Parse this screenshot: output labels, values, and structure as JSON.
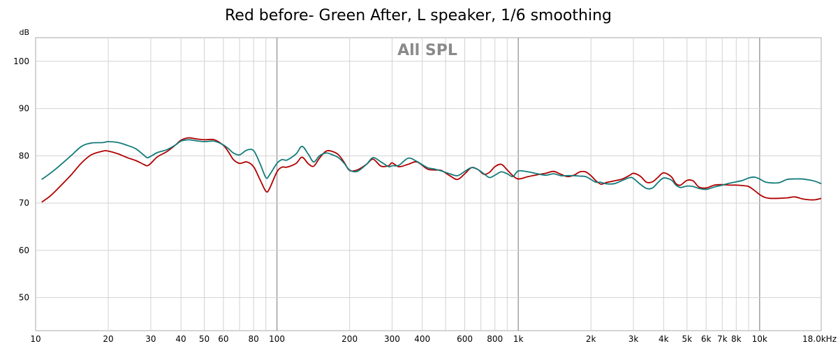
{
  "chart_data": {
    "type": "line",
    "title": "Red before- Green After, L speaker, 1/6 smoothing",
    "watermark": "All SPL",
    "ylabel": "dB",
    "xlabel": "",
    "x_scale": "log",
    "xlim": [
      10,
      18000
    ],
    "ylim": [
      43,
      105
    ],
    "grid": true,
    "y_ticks": [
      {
        "value": 100,
        "label": "100"
      },
      {
        "value": 90,
        "label": "90"
      },
      {
        "value": 80,
        "label": "80"
      },
      {
        "value": 70,
        "label": "70"
      },
      {
        "value": 60,
        "label": "60"
      },
      {
        "value": 50,
        "label": "50"
      }
    ],
    "x_ticks": [
      {
        "value": 10,
        "label": "10"
      },
      {
        "value": 20,
        "label": "20"
      },
      {
        "value": 30,
        "label": "30"
      },
      {
        "value": 40,
        "label": "40"
      },
      {
        "value": 50,
        "label": "50"
      },
      {
        "value": 60,
        "label": "60"
      },
      {
        "value": 80,
        "label": "80"
      },
      {
        "value": 100,
        "label": "100"
      },
      {
        "value": 200,
        "label": "200"
      },
      {
        "value": 300,
        "label": "300"
      },
      {
        "value": 400,
        "label": "400"
      },
      {
        "value": 600,
        "label": "600"
      },
      {
        "value": 800,
        "label": "800"
      },
      {
        "value": 1000,
        "label": "1k"
      },
      {
        "value": 2000,
        "label": "2k"
      },
      {
        "value": 3000,
        "label": "3k"
      },
      {
        "value": 4000,
        "label": "4k"
      },
      {
        "value": 5000,
        "label": "5k"
      },
      {
        "value": 6000,
        "label": "6k"
      },
      {
        "value": 7000,
        "label": "7k"
      },
      {
        "value": 8000,
        "label": "8k"
      },
      {
        "value": 10000,
        "label": "10k"
      },
      {
        "value": 18000,
        "label": "18.0kHz"
      }
    ],
    "series": [
      {
        "color": "#b00000",
        "points": [
          [
            10.6,
            70.2
          ],
          [
            11.5,
            71.5
          ],
          [
            12.5,
            73.3
          ],
          [
            14,
            75.9
          ],
          [
            15.5,
            78.5
          ],
          [
            17,
            80.2
          ],
          [
            19,
            81
          ],
          [
            20,
            81
          ],
          [
            22,
            80.4
          ],
          [
            24,
            79.6
          ],
          [
            26,
            79
          ],
          [
            28,
            78.2
          ],
          [
            29,
            77.9
          ],
          [
            30,
            78.4
          ],
          [
            32,
            79.8
          ],
          [
            35,
            80.9
          ],
          [
            38,
            82.3
          ],
          [
            40,
            83.3
          ],
          [
            43,
            83.8
          ],
          [
            46,
            83.6
          ],
          [
            50,
            83.4
          ],
          [
            55,
            83.4
          ],
          [
            60,
            82.2
          ],
          [
            63,
            80.8
          ],
          [
            66,
            79.2
          ],
          [
            70,
            78.4
          ],
          [
            75,
            78.7
          ],
          [
            80,
            77.7
          ],
          [
            85,
            75
          ],
          [
            90,
            72.5
          ],
          [
            93,
            73
          ],
          [
            100,
            76.6
          ],
          [
            105,
            77.6
          ],
          [
            110,
            77.6
          ],
          [
            120,
            78.4
          ],
          [
            127,
            79.7
          ],
          [
            135,
            78.3
          ],
          [
            142,
            77.8
          ],
          [
            150,
            79.5
          ],
          [
            160,
            81
          ],
          [
            170,
            80.9
          ],
          [
            180,
            80.2
          ],
          [
            190,
            78.6
          ],
          [
            200,
            76.9
          ],
          [
            215,
            77
          ],
          [
            235,
            78.2
          ],
          [
            250,
            79.3
          ],
          [
            270,
            77.8
          ],
          [
            290,
            77.9
          ],
          [
            300,
            78.5
          ],
          [
            320,
            77.7
          ],
          [
            350,
            78.2
          ],
          [
            380,
            78.7
          ],
          [
            420,
            77.2
          ],
          [
            450,
            77
          ],
          [
            480,
            76.9
          ],
          [
            520,
            75.8
          ],
          [
            560,
            75
          ],
          [
            600,
            76.2
          ],
          [
            640,
            77.5
          ],
          [
            680,
            77.1
          ],
          [
            720,
            76.1
          ],
          [
            760,
            76.5
          ],
          [
            800,
            77.7
          ],
          [
            850,
            78.2
          ],
          [
            900,
            77
          ],
          [
            950,
            75.8
          ],
          [
            1000,
            75.1
          ],
          [
            1100,
            75.6
          ],
          [
            1200,
            76
          ],
          [
            1300,
            76.3
          ],
          [
            1400,
            76.7
          ],
          [
            1500,
            76.1
          ],
          [
            1600,
            75.6
          ],
          [
            1700,
            75.9
          ],
          [
            1800,
            76.6
          ],
          [
            1900,
            76.6
          ],
          [
            2000,
            75.8
          ],
          [
            2100,
            74.7
          ],
          [
            2200,
            74
          ],
          [
            2300,
            74.3
          ],
          [
            2500,
            74.7
          ],
          [
            2700,
            75.1
          ],
          [
            2900,
            75.9
          ],
          [
            3000,
            76.3
          ],
          [
            3200,
            75.7
          ],
          [
            3400,
            74.4
          ],
          [
            3600,
            74.5
          ],
          [
            3800,
            75.5
          ],
          [
            4000,
            76.4
          ],
          [
            4300,
            75.6
          ],
          [
            4500,
            74.1
          ],
          [
            4700,
            73.8
          ],
          [
            5000,
            74.8
          ],
          [
            5300,
            74.7
          ],
          [
            5600,
            73.4
          ],
          [
            6000,
            73.2
          ],
          [
            6500,
            73.8
          ],
          [
            7000,
            73.9
          ],
          [
            7500,
            73.8
          ],
          [
            8000,
            73.8
          ],
          [
            8500,
            73.7
          ],
          [
            9000,
            73.5
          ],
          [
            9500,
            72.7
          ],
          [
            10000,
            71.8
          ],
          [
            10500,
            71.2
          ],
          [
            11000,
            71
          ],
          [
            12000,
            71
          ],
          [
            13000,
            71.1
          ],
          [
            14000,
            71.3
          ],
          [
            15000,
            70.9
          ],
          [
            16000,
            70.7
          ],
          [
            17000,
            70.7
          ],
          [
            18000,
            71
          ]
        ]
      },
      {
        "color": "#137b7b",
        "points": [
          [
            10.6,
            75
          ],
          [
            11.5,
            76.3
          ],
          [
            12.5,
            77.8
          ],
          [
            14,
            80
          ],
          [
            15.5,
            82
          ],
          [
            17,
            82.7
          ],
          [
            19,
            82.8
          ],
          [
            20,
            83
          ],
          [
            22,
            82.8
          ],
          [
            24,
            82.2
          ],
          [
            26,
            81.5
          ],
          [
            28,
            80.2
          ],
          [
            29,
            79.6
          ],
          [
            30,
            79.9
          ],
          [
            32,
            80.7
          ],
          [
            35,
            81.3
          ],
          [
            38,
            82.3
          ],
          [
            40,
            83.1
          ],
          [
            43,
            83.4
          ],
          [
            46,
            83.2
          ],
          [
            50,
            83
          ],
          [
            55,
            83.1
          ],
          [
            60,
            82.3
          ],
          [
            63,
            81.5
          ],
          [
            66,
            80.6
          ],
          [
            70,
            80.2
          ],
          [
            75,
            81.2
          ],
          [
            80,
            81.1
          ],
          [
            85,
            78.4
          ],
          [
            90,
            75.4
          ],
          [
            93,
            75.9
          ],
          [
            100,
            78.4
          ],
          [
            105,
            79.2
          ],
          [
            110,
            79.1
          ],
          [
            120,
            80.4
          ],
          [
            127,
            82
          ],
          [
            135,
            80.3
          ],
          [
            142,
            78.7
          ],
          [
            150,
            80
          ],
          [
            160,
            80.6
          ],
          [
            170,
            80.2
          ],
          [
            180,
            79.6
          ],
          [
            190,
            78.4
          ],
          [
            200,
            77
          ],
          [
            215,
            76.7
          ],
          [
            235,
            78.2
          ],
          [
            250,
            79.6
          ],
          [
            270,
            78.7
          ],
          [
            290,
            77.7
          ],
          [
            300,
            77.9
          ],
          [
            320,
            78
          ],
          [
            350,
            79.5
          ],
          [
            380,
            78.8
          ],
          [
            420,
            77.5
          ],
          [
            450,
            77.2
          ],
          [
            480,
            76.8
          ],
          [
            520,
            76.2
          ],
          [
            560,
            75.8
          ],
          [
            600,
            76.7
          ],
          [
            640,
            77.5
          ],
          [
            680,
            77.1
          ],
          [
            720,
            76.2
          ],
          [
            760,
            75.4
          ],
          [
            800,
            75.9
          ],
          [
            850,
            76.6
          ],
          [
            900,
            76.2
          ],
          [
            950,
            75.6
          ],
          [
            1000,
            76.8
          ],
          [
            1100,
            76.6
          ],
          [
            1200,
            76.2
          ],
          [
            1300,
            75.9
          ],
          [
            1400,
            76.2
          ],
          [
            1500,
            75.8
          ],
          [
            1600,
            75.8
          ],
          [
            1700,
            75.8
          ],
          [
            1800,
            75.7
          ],
          [
            1900,
            75.6
          ],
          [
            2000,
            75
          ],
          [
            2100,
            74.4
          ],
          [
            2200,
            74.4
          ],
          [
            2300,
            74.1
          ],
          [
            2500,
            74.1
          ],
          [
            2700,
            74.8
          ],
          [
            2900,
            75.4
          ],
          [
            3000,
            75.2
          ],
          [
            3200,
            74
          ],
          [
            3400,
            73.1
          ],
          [
            3600,
            73.2
          ],
          [
            3800,
            74.4
          ],
          [
            4000,
            75.3
          ],
          [
            4300,
            74.9
          ],
          [
            4500,
            73.8
          ],
          [
            4700,
            73.3
          ],
          [
            5000,
            73.6
          ],
          [
            5300,
            73.5
          ],
          [
            5600,
            73.1
          ],
          [
            6000,
            72.9
          ],
          [
            6500,
            73.4
          ],
          [
            7000,
            73.8
          ],
          [
            7500,
            74.2
          ],
          [
            8000,
            74.5
          ],
          [
            8500,
            74.8
          ],
          [
            9000,
            75.3
          ],
          [
            9500,
            75.5
          ],
          [
            10000,
            75.1
          ],
          [
            10500,
            74.5
          ],
          [
            11000,
            74.3
          ],
          [
            12000,
            74.3
          ],
          [
            13000,
            75
          ],
          [
            14000,
            75.1
          ],
          [
            15000,
            75.1
          ],
          [
            16000,
            74.9
          ],
          [
            17000,
            74.6
          ],
          [
            18000,
            74.1
          ]
        ]
      }
    ]
  }
}
